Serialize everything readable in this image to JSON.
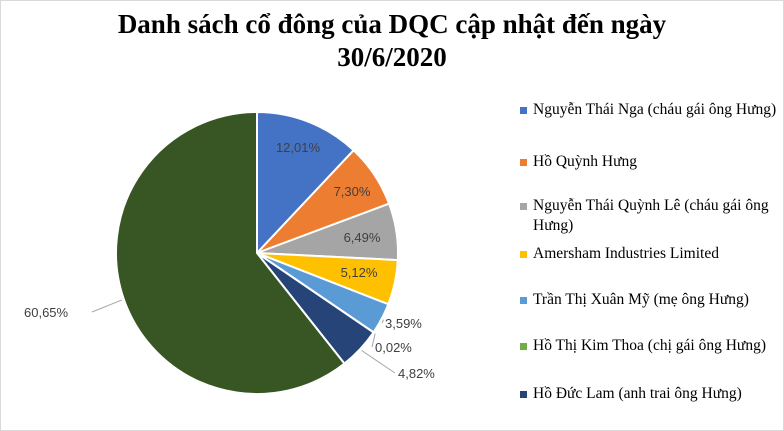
{
  "chart_data": {
    "type": "pie",
    "title": "Danh sách cổ đông của DQC cập nhật đến ngày 30/6/2020",
    "title_lines": [
      "Danh sách cổ đông của DQC cập nhật đến ngày",
      "30/6/2020"
    ],
    "legend_position": "right",
    "slices": [
      {
        "name": "Nguyễn Thái Nga (cháu gái ông Hưng)",
        "value": 12.01,
        "label": "12,01%",
        "color": "#4472c4"
      },
      {
        "name": "Hồ Quỳnh Hưng",
        "value": 7.3,
        "label": "7,30%",
        "color": "#ed7d31"
      },
      {
        "name": "Nguyễn Thái Quỳnh Lê (cháu gái ông Hưng)",
        "value": 6.49,
        "label": "6,49%",
        "color": "#a5a5a5"
      },
      {
        "name": "Amersham Industries Limited",
        "value": 5.12,
        "label": "5,12%",
        "color": "#ffc000"
      },
      {
        "name": "Trần Thị Xuân Mỹ (mẹ ông Hưng)",
        "value": 3.59,
        "label": "3,59%",
        "color": "#5b9bd5"
      },
      {
        "name": "Hồ Thị Kim Thoa (chị gái ông Hưng)",
        "value": 0.02,
        "label": "0,02%",
        "color": "#70ad47"
      },
      {
        "name": "Hồ Đức Lam (anh trai ông Hưng)",
        "value": 4.82,
        "label": "4,82%",
        "color": "#264478"
      },
      {
        "name": "",
        "value": 60.65,
        "label": "60,65%",
        "color": "#375623"
      }
    ]
  }
}
